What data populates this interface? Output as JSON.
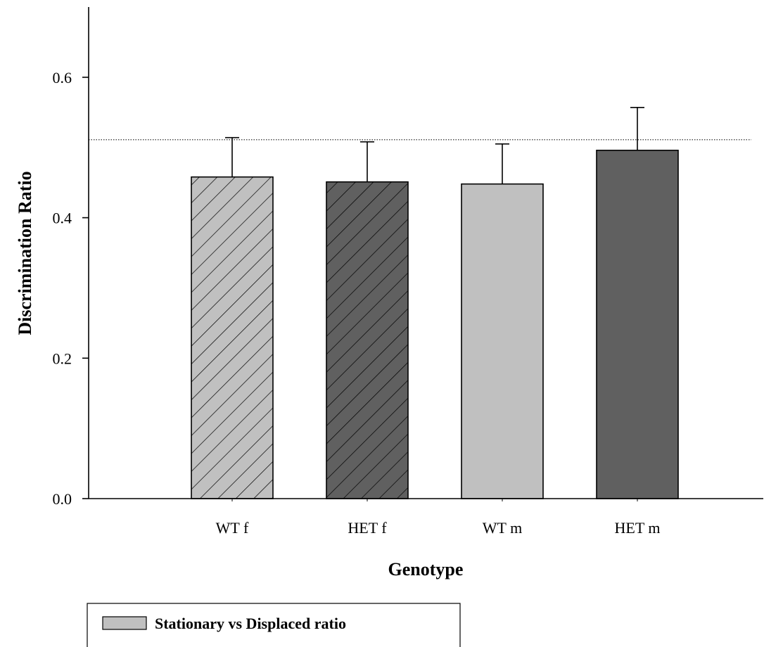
{
  "chart_data": {
    "type": "bar",
    "title": "",
    "xlabel": "Genotype",
    "ylabel": "Discrimination Ratio",
    "categories": [
      "WT f",
      "HET f",
      "WT m",
      "HET m"
    ],
    "values": [
      0.458,
      0.451,
      0.448,
      0.496
    ],
    "errors": [
      0.056,
      0.057,
      0.057,
      0.061
    ],
    "ylim": [
      0.0,
      0.7
    ],
    "yticks": [
      0.0,
      0.2,
      0.4,
      0.6
    ],
    "ytick_labels": [
      "0.0",
      "0.2",
      "0.4",
      "0.6"
    ],
    "reference_line": 0.511,
    "grid": false,
    "legend_placement": "bottom-left",
    "legend": [
      "Stationary vs Displaced ratio"
    ],
    "bar_styles": [
      {
        "fill": "#c0c0c0",
        "hatched": true
      },
      {
        "fill": "#606060",
        "hatched": true
      },
      {
        "fill": "#c0c0c0",
        "hatched": false
      },
      {
        "fill": "#606060",
        "hatched": false
      }
    ],
    "colors": {
      "light": "#c0c0c0",
      "dark": "#606060",
      "axis": "#000000"
    }
  }
}
